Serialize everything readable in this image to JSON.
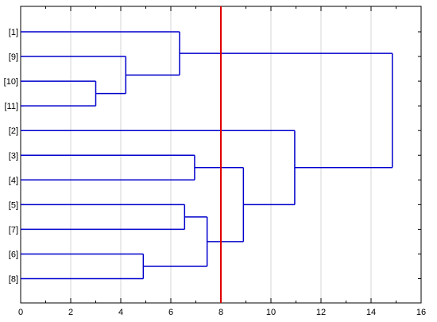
{
  "chart_data": {
    "type": "dendrogram",
    "orientation": "horizontal",
    "leaves": [
      "[1]",
      "[9]",
      "[10]",
      "[11]",
      "[2]",
      "[3]",
      "[4]",
      "[5]",
      "[7]",
      "[6]",
      "[8]"
    ],
    "merges": [
      {
        "id": "m10_11",
        "children": [
          "[10]",
          "[11]"
        ],
        "height": 3.0
      },
      {
        "id": "m9_10_11",
        "children": [
          "[9]",
          "m10_11"
        ],
        "height": 4.2
      },
      {
        "id": "m1_group",
        "children": [
          "[1]",
          "m9_10_11"
        ],
        "height": 6.35
      },
      {
        "id": "m6_8",
        "children": [
          "[6]",
          "[8]"
        ],
        "height": 4.9
      },
      {
        "id": "m5_7",
        "children": [
          "[5]",
          "[7]"
        ],
        "height": 6.55
      },
      {
        "id": "m3_4",
        "children": [
          "[3]",
          "[4]"
        ],
        "height": 6.95
      },
      {
        "id": "m5_7_6_8",
        "children": [
          "m5_7",
          "m6_8"
        ],
        "height": 7.45
      },
      {
        "id": "m3_4_5_6_7_8",
        "children": [
          "m3_4",
          "m5_7_6_8"
        ],
        "height": 8.9
      },
      {
        "id": "m2_group",
        "children": [
          "[2]",
          "m3_4_5_6_7_8"
        ],
        "height": 10.95
      },
      {
        "id": "root",
        "children": [
          "m1_group",
          "m2_group"
        ],
        "height": 14.85
      }
    ],
    "x_ticks": [
      "0",
      "2",
      "4",
      "6",
      "8",
      "10",
      "12",
      "14",
      "16"
    ],
    "xlim": [
      0,
      16
    ],
    "cutoff_line": 8,
    "grid": true,
    "colors": {
      "branches": "#0000cc",
      "cutoff": "#e00000",
      "grid": "#d4d4d4",
      "axis": "#000000"
    }
  }
}
